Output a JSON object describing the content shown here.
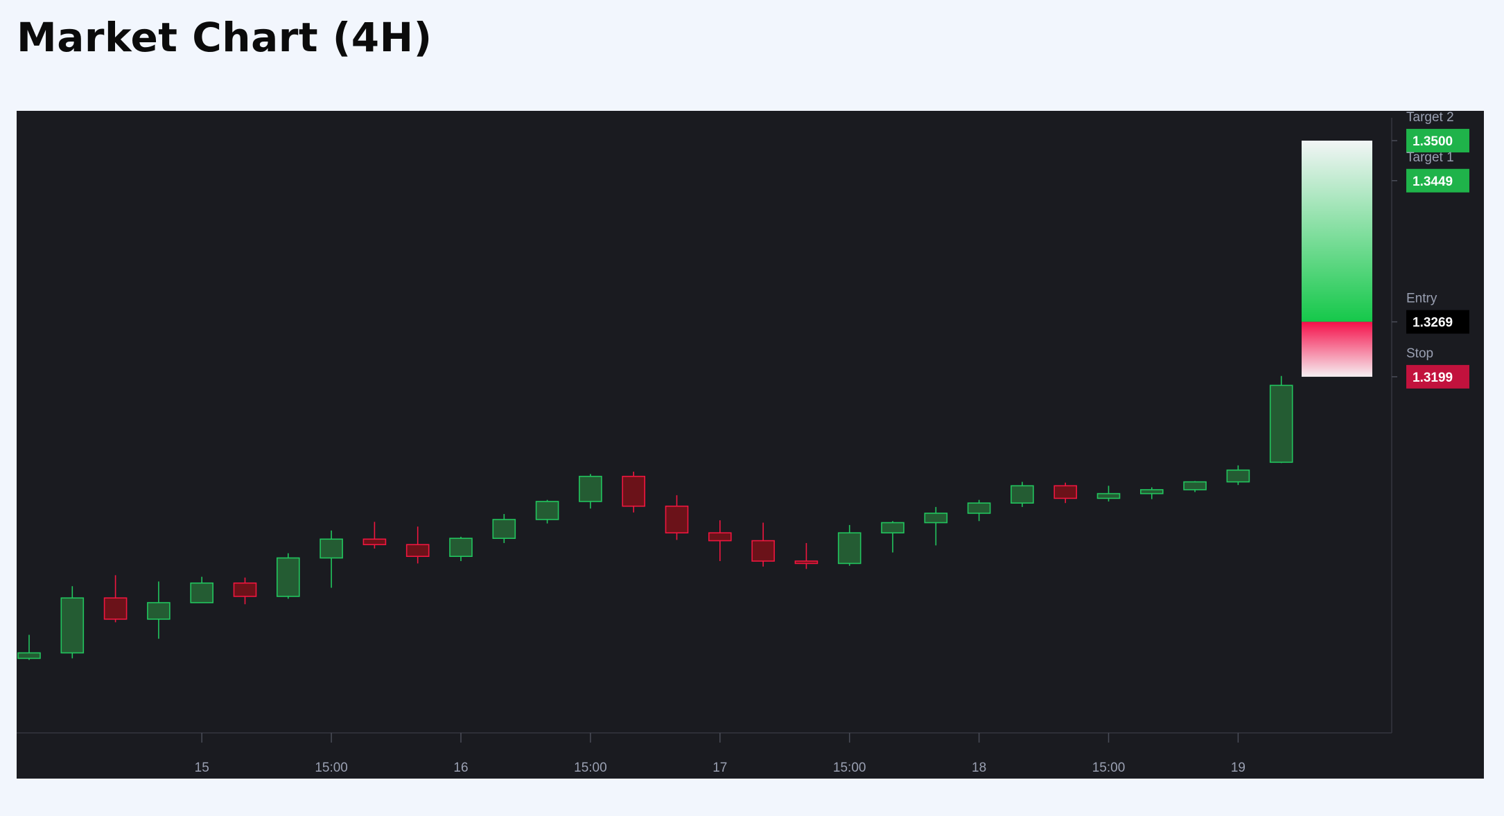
{
  "page": {
    "title": "Market Chart (4H)"
  },
  "colors": {
    "page_background": "#f2f6fd",
    "chart_background": "#1a1b20",
    "up_body": "#245c33",
    "up_border": "#22c55e",
    "down_body": "#6b1219",
    "down_border": "#f0163f",
    "target_tag": "#1fb34a",
    "entry_tag": "#000000",
    "stop_tag": "#c2123d",
    "axis_text": "#9aa0b2"
  },
  "chart_data": {
    "type": "candlestick",
    "title": "Market Chart (4H)",
    "xlabel": "",
    "ylabel": "",
    "ylim": [
      1.2745,
      1.3538
    ],
    "x_tick_labels": [
      "15",
      "15:00",
      "16",
      "15:00",
      "17",
      "15:00",
      "18",
      "15:00",
      "19"
    ],
    "candles": [
      {
        "open": 1.284,
        "high": 1.287,
        "low": 1.2838,
        "close": 1.2847
      },
      {
        "open": 1.2847,
        "high": 1.2932,
        "low": 1.284,
        "close": 1.2917
      },
      {
        "open": 1.2917,
        "high": 1.2946,
        "low": 1.2886,
        "close": 1.289
      },
      {
        "open": 1.289,
        "high": 1.2938,
        "low": 1.2865,
        "close": 1.2911
      },
      {
        "open": 1.2911,
        "high": 1.2944,
        "low": 1.2911,
        "close": 1.2936
      },
      {
        "open": 1.2936,
        "high": 1.2943,
        "low": 1.2909,
        "close": 1.2919
      },
      {
        "open": 1.2919,
        "high": 1.2974,
        "low": 1.2916,
        "close": 1.2968
      },
      {
        "open": 1.2968,
        "high": 1.3003,
        "low": 1.293,
        "close": 1.2992
      },
      {
        "open": 1.2992,
        "high": 1.3014,
        "low": 1.298,
        "close": 1.2985
      },
      {
        "open": 1.2985,
        "high": 1.3008,
        "low": 1.2961,
        "close": 1.297
      },
      {
        "open": 1.297,
        "high": 1.2995,
        "low": 1.2964,
        "close": 1.2993
      },
      {
        "open": 1.2993,
        "high": 1.3024,
        "low": 1.2987,
        "close": 1.3017
      },
      {
        "open": 1.3017,
        "high": 1.3042,
        "low": 1.3012,
        "close": 1.304
      },
      {
        "open": 1.304,
        "high": 1.3075,
        "low": 1.3031,
        "close": 1.3072
      },
      {
        "open": 1.3072,
        "high": 1.3078,
        "low": 1.3026,
        "close": 1.3034
      },
      {
        "open": 1.3034,
        "high": 1.3048,
        "low": 1.2991,
        "close": 1.3
      },
      {
        "open": 1.3,
        "high": 1.3016,
        "low": 1.2964,
        "close": 1.299
      },
      {
        "open": 1.299,
        "high": 1.3013,
        "low": 1.2957,
        "close": 1.2964
      },
      {
        "open": 1.2964,
        "high": 1.2987,
        "low": 1.2954,
        "close": 1.2961
      },
      {
        "open": 1.2961,
        "high": 1.301,
        "low": 1.2958,
        "close": 1.3
      },
      {
        "open": 1.3,
        "high": 1.3015,
        "low": 1.2975,
        "close": 1.3013
      },
      {
        "open": 1.3013,
        "high": 1.3033,
        "low": 1.2984,
        "close": 1.3025
      },
      {
        "open": 1.3025,
        "high": 1.3042,
        "low": 1.3015,
        "close": 1.3038
      },
      {
        "open": 1.3038,
        "high": 1.3065,
        "low": 1.3033,
        "close": 1.306
      },
      {
        "open": 1.306,
        "high": 1.3064,
        "low": 1.3038,
        "close": 1.3044
      },
      {
        "open": 1.3044,
        "high": 1.306,
        "low": 1.304,
        "close": 1.305
      },
      {
        "open": 1.305,
        "high": 1.3058,
        "low": 1.3043,
        "close": 1.3055
      },
      {
        "open": 1.3055,
        "high": 1.3066,
        "low": 1.3052,
        "close": 1.3065
      },
      {
        "open": 1.3065,
        "high": 1.3086,
        "low": 1.3061,
        "close": 1.308
      },
      {
        "open": 1.309,
        "high": 1.32,
        "low": 1.3089,
        "close": 1.3188
      }
    ],
    "levels": [
      {
        "label": "Target 2",
        "value": "1.3500",
        "price": 1.35,
        "tag_color": "#1fb34a"
      },
      {
        "label": "Target 1",
        "value": "1.3449",
        "price": 1.3449,
        "tag_color": "#1fb34a"
      },
      {
        "label": "Entry",
        "value": "1.3269",
        "price": 1.3269,
        "tag_color": "#000000"
      },
      {
        "label": "Stop",
        "value": "1.3199",
        "price": 1.3199,
        "tag_color": "#c2123d"
      }
    ],
    "trade_zone": {
      "top": 1.35,
      "entry": 1.3269,
      "bottom": 1.3199
    },
    "grid": false
  }
}
